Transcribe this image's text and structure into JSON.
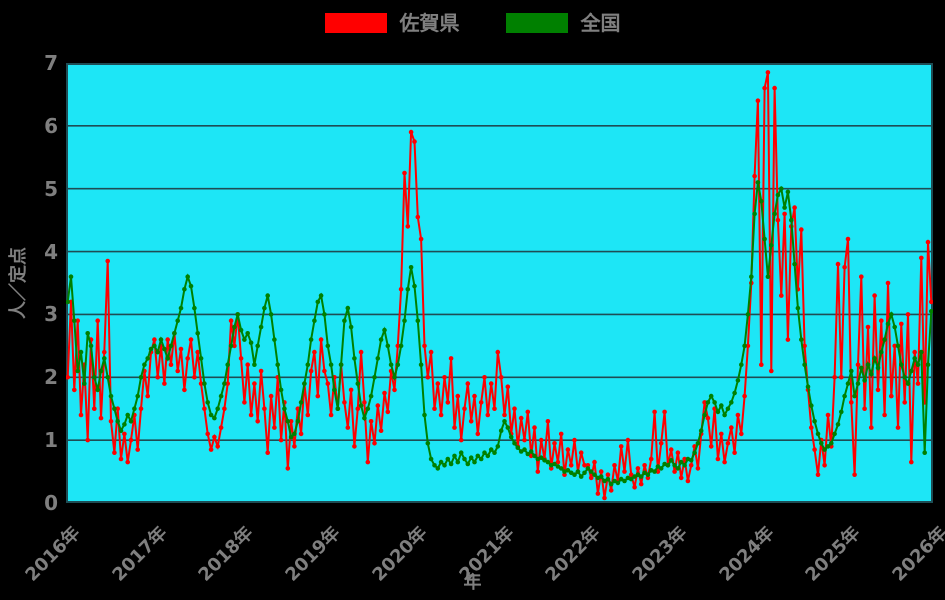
{
  "legend": {
    "items": [
      {
        "label": "佐賀県",
        "color": "#ff0000"
      },
      {
        "label": "全国",
        "color": "#008000"
      }
    ]
  },
  "colors": {
    "page_background": "#000000",
    "plot_background": "#1de6f6",
    "grid_line": "#1e4d55",
    "axis_text": "#7f7f7f",
    "series_saga": "#ff0000",
    "series_national": "#008000"
  },
  "chart_data": {
    "type": "line",
    "title": "",
    "xlabel": "年",
    "ylabel": "人／定点",
    "ylim": [
      0,
      7
    ],
    "xlim": [
      2016,
      2026
    ],
    "y_ticks": [
      0,
      1,
      2,
      3,
      4,
      5,
      6,
      7
    ],
    "x_tick_labels": [
      "2016年",
      "2017年",
      "2018年",
      "2019年",
      "2020年",
      "2021年",
      "2022年",
      "2023年",
      "2024年",
      "2025年",
      "2026年"
    ],
    "grid": true,
    "legend_position": "top-center",
    "start_year": 2016,
    "points_per_year": 26,
    "series": [
      {
        "name": "佐賀県",
        "color": "#ff0000",
        "values": [
          2.0,
          3.2,
          1.8,
          2.9,
          1.4,
          2.2,
          1.0,
          2.6,
          1.5,
          2.9,
          1.35,
          2.4,
          3.85,
          1.3,
          0.8,
          1.5,
          0.7,
          1.1,
          0.65,
          1.0,
          1.4,
          0.85,
          1.5,
          2.1,
          1.7,
          2.4,
          2.6,
          2.0,
          2.5,
          1.9,
          2.6,
          2.2,
          2.7,
          2.1,
          2.45,
          1.8,
          2.3,
          2.6,
          2.0,
          2.4,
          1.9,
          1.5,
          1.1,
          0.85,
          1.05,
          0.9,
          1.2,
          1.5,
          1.9,
          2.9,
          2.5,
          3.0,
          2.3,
          1.6,
          2.2,
          1.4,
          1.9,
          1.3,
          2.1,
          1.5,
          0.8,
          1.7,
          1.2,
          2.0,
          1.0,
          1.6,
          0.55,
          1.3,
          0.9,
          1.5,
          1.1,
          1.9,
          1.4,
          2.1,
          2.4,
          1.7,
          2.6,
          2.1,
          1.9,
          1.4,
          2.0,
          1.5,
          2.2,
          1.6,
          1.2,
          1.8,
          0.9,
          1.5,
          2.4,
          1.6,
          0.65,
          1.3,
          0.95,
          1.55,
          1.15,
          1.75,
          1.45,
          2.1,
          1.8,
          2.5,
          3.4,
          5.25,
          4.4,
          5.9,
          5.75,
          4.55,
          4.2,
          2.5,
          2.0,
          2.4,
          1.5,
          1.9,
          1.4,
          2.0,
          1.6,
          2.3,
          1.2,
          1.7,
          1.0,
          1.5,
          1.9,
          1.3,
          1.7,
          1.1,
          1.6,
          2.0,
          1.4,
          1.9,
          1.5,
          2.4,
          2.0,
          1.4,
          1.85,
          1.1,
          1.5,
          0.9,
          1.35,
          1.0,
          1.45,
          0.75,
          1.2,
          0.5,
          1.0,
          0.7,
          1.3,
          0.55,
          0.95,
          0.65,
          1.1,
          0.45,
          0.85,
          0.6,
          1.0,
          0.5,
          0.8,
          0.6,
          0.6,
          0.4,
          0.65,
          0.15,
          0.5,
          0.08,
          0.45,
          0.2,
          0.6,
          0.35,
          0.9,
          0.5,
          1.0,
          0.45,
          0.25,
          0.55,
          0.3,
          0.6,
          0.4,
          0.7,
          1.45,
          0.5,
          0.95,
          1.45,
          0.6,
          0.85,
          0.5,
          0.8,
          0.4,
          0.7,
          0.35,
          0.6,
          0.9,
          0.55,
          1.1,
          1.6,
          1.35,
          0.9,
          1.5,
          0.7,
          1.1,
          0.65,
          0.95,
          1.2,
          0.8,
          1.4,
          1.1,
          1.7,
          2.5,
          3.5,
          5.2,
          6.4,
          2.2,
          6.6,
          6.85,
          2.1,
          6.6,
          4.5,
          3.3,
          4.6,
          2.6,
          4.4,
          4.7,
          3.4,
          4.35,
          2.5,
          1.8,
          1.2,
          0.85,
          0.45,
          1.0,
          0.6,
          1.4,
          0.9,
          2.0,
          3.8,
          2.0,
          3.75,
          4.2,
          1.6,
          0.45,
          2.2,
          3.6,
          1.5,
          2.8,
          1.2,
          3.3,
          1.8,
          2.9,
          1.4,
          3.5,
          1.7,
          2.5,
          1.2,
          2.85,
          1.6,
          3.0,
          0.65,
          2.4,
          1.9,
          3.9,
          1.6,
          4.15,
          3.2
        ]
      },
      {
        "name": "全国",
        "color": "#008000",
        "values": [
          3.2,
          3.6,
          2.9,
          2.1,
          2.4,
          1.9,
          2.7,
          2.5,
          2.0,
          1.8,
          2.1,
          2.3,
          2.0,
          1.7,
          1.5,
          1.3,
          1.15,
          1.25,
          1.4,
          1.3,
          1.5,
          1.7,
          2.0,
          2.2,
          2.3,
          2.45,
          2.5,
          2.4,
          2.6,
          2.45,
          2.3,
          2.5,
          2.7,
          2.9,
          3.1,
          3.4,
          3.6,
          3.45,
          3.1,
          2.7,
          2.3,
          1.9,
          1.6,
          1.4,
          1.35,
          1.5,
          1.7,
          1.9,
          2.2,
          2.5,
          2.8,
          3.0,
          2.75,
          2.6,
          2.7,
          2.55,
          2.2,
          2.5,
          2.8,
          3.1,
          3.3,
          3.0,
          2.6,
          2.2,
          1.8,
          1.5,
          1.3,
          1.05,
          1.1,
          1.3,
          1.6,
          1.9,
          2.2,
          2.6,
          2.9,
          3.2,
          3.3,
          3.0,
          2.5,
          2.2,
          1.8,
          1.5,
          2.2,
          2.9,
          3.1,
          2.8,
          2.3,
          1.9,
          1.55,
          1.35,
          1.5,
          1.7,
          2.0,
          2.3,
          2.6,
          2.75,
          2.5,
          2.2,
          2.0,
          2.2,
          2.5,
          2.9,
          3.4,
          3.75,
          3.45,
          2.9,
          2.2,
          1.4,
          0.95,
          0.7,
          0.6,
          0.55,
          0.65,
          0.6,
          0.7,
          0.62,
          0.75,
          0.65,
          0.8,
          0.7,
          0.62,
          0.72,
          0.65,
          0.75,
          0.7,
          0.8,
          0.75,
          0.85,
          0.8,
          0.9,
          1.15,
          1.3,
          1.2,
          1.05,
          0.95,
          0.88,
          0.82,
          0.85,
          0.78,
          0.82,
          0.75,
          0.7,
          0.72,
          0.68,
          0.65,
          0.6,
          0.62,
          0.58,
          0.55,
          0.5,
          0.52,
          0.48,
          0.45,
          0.5,
          0.42,
          0.48,
          0.55,
          0.5,
          0.45,
          0.4,
          0.42,
          0.35,
          0.38,
          0.3,
          0.35,
          0.32,
          0.38,
          0.35,
          0.4,
          0.38,
          0.42,
          0.45,
          0.42,
          0.48,
          0.45,
          0.52,
          0.5,
          0.58,
          0.55,
          0.62,
          0.6,
          0.68,
          0.6,
          0.55,
          0.65,
          0.6,
          0.7,
          0.68,
          0.8,
          0.95,
          1.15,
          1.4,
          1.6,
          1.7,
          1.6,
          1.45,
          1.55,
          1.4,
          1.5,
          1.6,
          1.75,
          1.95,
          2.2,
          2.5,
          3.0,
          3.6,
          4.6,
          5.1,
          4.8,
          4.2,
          3.6,
          4.1,
          4.6,
          4.9,
          5.0,
          4.7,
          4.95,
          4.5,
          3.8,
          3.1,
          2.6,
          2.2,
          1.85,
          1.55,
          1.3,
          1.1,
          0.95,
          0.85,
          0.9,
          0.95,
          1.1,
          1.25,
          1.45,
          1.7,
          1.9,
          2.1,
          1.7,
          1.9,
          2.15,
          1.95,
          2.2,
          2.05,
          2.3,
          2.15,
          2.4,
          2.6,
          2.85,
          3.0,
          2.8,
          2.5,
          2.2,
          2.0,
          1.9,
          2.1,
          2.3,
          2.2,
          2.4,
          0.8,
          2.2,
          3.05
        ]
      }
    ]
  }
}
